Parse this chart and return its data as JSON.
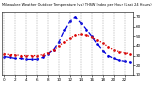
{
  "title": "Milwaukee Weather Outdoor Temperature (vs) THSW Index per Hour (Last 24 Hours)",
  "hours": [
    0,
    1,
    2,
    3,
    4,
    5,
    6,
    7,
    8,
    9,
    10,
    11,
    12,
    13,
    14,
    15,
    16,
    17,
    18,
    19,
    20,
    21,
    22,
    23
  ],
  "temp": [
    32,
    31,
    31,
    30,
    30,
    30,
    30,
    31,
    33,
    36,
    40,
    44,
    48,
    51,
    52,
    51,
    49,
    46,
    43,
    39,
    36,
    34,
    33,
    32
  ],
  "thsw": [
    29,
    28,
    27,
    27,
    26,
    26,
    26,
    28,
    32,
    36,
    44,
    56,
    66,
    70,
    64,
    57,
    50,
    42,
    35,
    30,
    27,
    25,
    24,
    23
  ],
  "temp_color": "#dd0000",
  "thsw_color": "#0000dd",
  "bg_color": "#ffffff",
  "grid_color": "#999999",
  "yticks": [
    10,
    20,
    30,
    40,
    50,
    60,
    70
  ],
  "ylim": [
    10,
    75
  ],
  "xlim": [
    -0.5,
    23.5
  ],
  "xticks": [
    0,
    2,
    4,
    6,
    8,
    10,
    12,
    14,
    16,
    18,
    20,
    22
  ],
  "grid_xticks": [
    0,
    2,
    4,
    6,
    8,
    10,
    12,
    14,
    16,
    18,
    20,
    22
  ]
}
